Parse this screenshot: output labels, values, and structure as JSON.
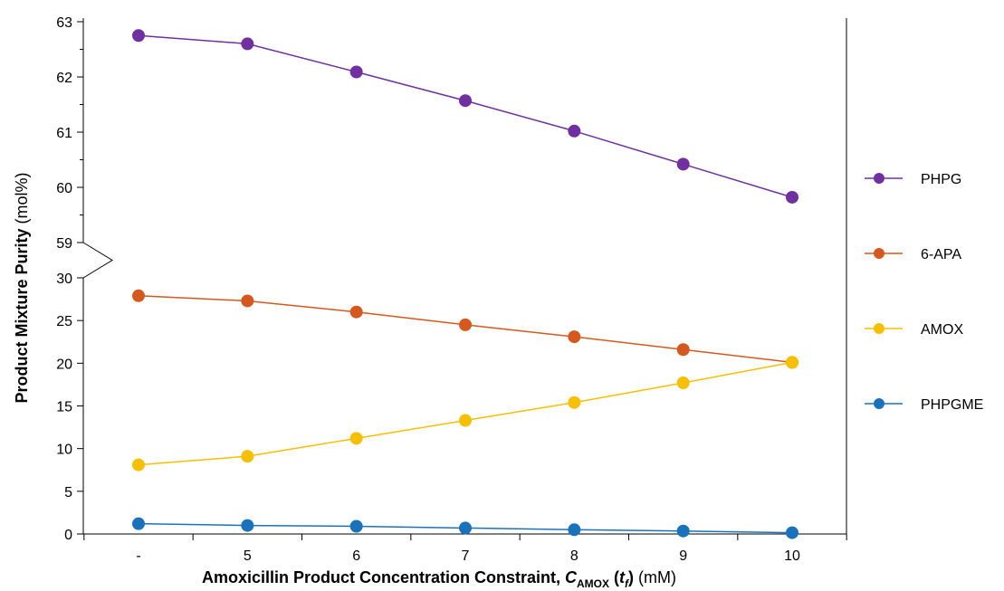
{
  "chart_data": {
    "type": "line",
    "categories": [
      "-",
      "5",
      "6",
      "7",
      "8",
      "9",
      "10"
    ],
    "ylabel": {
      "bold": "Product Mixture Purity",
      "rest": " (mol%)"
    },
    "xlabel": {
      "bold": "Amoxicillin Product Concentration Constraint, ",
      "c": "C",
      "sub": "AMOX",
      "t_open": " (",
      "t": "t",
      "t_sub": "f",
      "t_close": ")",
      "rest": " (mM)"
    },
    "y_upper": {
      "ylim": [
        59,
        63
      ],
      "ticks": [
        "59",
        "60",
        "61",
        "62",
        "63"
      ]
    },
    "y_lower": {
      "ylim": [
        0,
        30
      ],
      "ticks": [
        "0",
        "5",
        "10",
        "15",
        "20",
        "25",
        "30"
      ]
    },
    "axis_break": true,
    "legend_position": "right",
    "series": [
      {
        "name": "PHPG",
        "color": "#7030A0",
        "panel": "upper",
        "values": [
          62.75,
          62.6,
          62.09,
          61.57,
          61.02,
          60.42,
          59.82
        ]
      },
      {
        "name": "6-APA",
        "color": "#D5581F",
        "panel": "lower",
        "values": [
          27.9,
          27.3,
          26.0,
          24.5,
          23.1,
          21.6,
          20.1
        ]
      },
      {
        "name": "AMOX",
        "color": "#F6BF00",
        "panel": "lower",
        "values": [
          8.1,
          9.1,
          11.2,
          13.3,
          15.4,
          17.7,
          20.1
        ]
      },
      {
        "name": "PHPGME",
        "color": "#1A72BB",
        "panel": "lower",
        "values": [
          1.2,
          1.0,
          0.9,
          0.7,
          0.5,
          0.35,
          0.15
        ]
      }
    ]
  }
}
